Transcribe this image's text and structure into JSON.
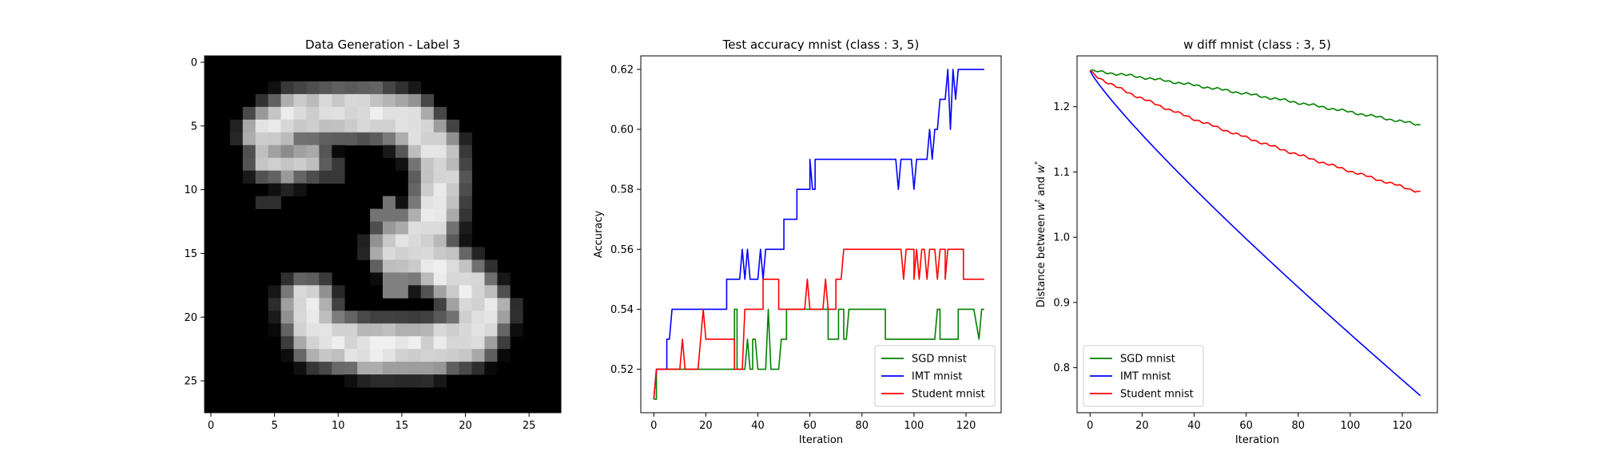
{
  "chart_data": [
    {
      "type": "heatmap",
      "title": "Data Generation - Label 3",
      "xlabel": "",
      "ylabel": "",
      "xlim": [
        -0.5,
        27.5
      ],
      "ylim": [
        27.5,
        -0.5
      ],
      "xticks": [
        0,
        5,
        10,
        15,
        20,
        25
      ],
      "yticks": [
        0,
        5,
        10,
        15,
        20,
        25
      ],
      "colormap": "gray",
      "grid": false,
      "strokes": [
        {
          "cx": 4,
          "cy": 6,
          "r": 0.5,
          "v": 0.5
        },
        {
          "cx": 5.5,
          "cy": 7.2,
          "r": 0.6,
          "v": 0.55
        },
        {
          "cx": 4.6,
          "cy": 9.1,
          "r": 0.4,
          "v": 0.32
        },
        {
          "cx": 4.8,
          "cy": 11,
          "r": 0.35,
          "v": 0.18
        },
        {
          "cx": 9.5,
          "cy": 8.5,
          "r": 0.35,
          "v": 0.22
        },
        {
          "cx": 8,
          "cy": 7.5,
          "r": 0.3,
          "v": 0.25
        },
        {
          "cx": 14,
          "cy": 12,
          "r": 0.5,
          "v": 0.45
        },
        {
          "cx": 14.5,
          "cy": 17.5,
          "r": 0.5,
          "v": 0.5
        },
        {
          "cx": 12,
          "cy": 23,
          "r": 0.5,
          "v": 0.35
        },
        {
          "cx": 16.5,
          "cy": 23,
          "r": 0.5,
          "v": 0.3
        },
        {
          "cx": 22.5,
          "cy": 19,
          "r": 0.4,
          "v": 0.25
        },
        {
          "cx": 7,
          "cy": 20,
          "r": 0.35,
          "v": 0.35
        }
      ],
      "stroke_paths": [
        {
          "points": [
            [
              4.5,
              5.5
            ],
            [
              6.5,
              4.3
            ],
            [
              9.5,
              4.0
            ],
            [
              12.5,
              3.9
            ],
            [
              15.5,
              4.6
            ],
            [
              17.5,
              6.6
            ],
            [
              18,
              9
            ],
            [
              17.6,
              12
            ],
            [
              16.5,
              13.8
            ],
            [
              14.6,
              14.6
            ]
          ],
          "width": 1.7,
          "v": 0.94
        },
        {
          "points": [
            [
              14.6,
              14.6
            ],
            [
              17.5,
              15.6
            ],
            [
              20,
              17.6
            ],
            [
              21.5,
              19.6
            ],
            [
              20.5,
              21.5
            ],
            [
              17,
              22.4
            ],
            [
              12.5,
              22.4
            ],
            [
              8.5,
              21.6
            ],
            [
              7.8,
              20.2
            ],
            [
              7.6,
              19
            ]
          ],
          "width": 1.8,
          "v": 0.95
        },
        {
          "points": [
            [
              4.2,
              7.5
            ],
            [
              6,
              8.2
            ],
            [
              8,
              7.6
            ]
          ],
          "width": 1.0,
          "v": 0.82
        }
      ]
    },
    {
      "type": "line",
      "title": "Test accuracy mnist (class : 3, 5)",
      "xlabel": "Iteration",
      "ylabel": "Accuracy",
      "xlim": [
        -5,
        133.5
      ],
      "ylim": [
        0.5055,
        0.6245
      ],
      "xticks": [
        0,
        20,
        40,
        60,
        80,
        100,
        120
      ],
      "yticks": [
        0.52,
        0.54,
        0.56,
        0.58,
        0.6,
        0.62
      ],
      "ytick_labels": [
        "0.52",
        "0.54",
        "0.56",
        "0.58",
        "0.60",
        "0.62"
      ],
      "legend": "lower-right",
      "grid": false,
      "series": [
        {
          "name": "SGD mnist",
          "color": "#008000",
          "segments": [
            [
              0,
              0.51
            ],
            [
              1,
              0.51
            ],
            [
              1,
              0.52
            ],
            [
              31,
              0.52
            ],
            [
              31,
              0.54
            ],
            [
              32,
              0.54
            ],
            [
              32,
              0.52
            ],
            [
              35,
              0.52
            ],
            [
              36,
              0.53
            ],
            [
              37,
              0.52
            ],
            [
              38,
              0.52
            ],
            [
              38,
              0.53
            ],
            [
              39,
              0.53
            ],
            [
              40,
              0.52
            ],
            [
              43,
              0.52
            ],
            [
              44,
              0.54
            ],
            [
              45,
              0.52
            ],
            [
              48,
              0.52
            ],
            [
              49,
              0.53
            ],
            [
              51,
              0.53
            ],
            [
              51,
              0.54
            ],
            [
              67,
              0.54
            ],
            [
              67,
              0.53
            ],
            [
              71,
              0.53
            ],
            [
              71,
              0.54
            ],
            [
              73,
              0.54
            ],
            [
              73,
              0.53
            ],
            [
              74,
              0.53
            ],
            [
              75,
              0.54
            ],
            [
              89,
              0.54
            ],
            [
              89,
              0.53
            ],
            [
              108,
              0.53
            ],
            [
              109,
              0.54
            ],
            [
              110,
              0.54
            ],
            [
              110,
              0.53
            ],
            [
              117,
              0.53
            ],
            [
              117,
              0.54
            ],
            [
              123,
              0.54
            ],
            [
              125,
              0.53
            ],
            [
              126,
              0.54
            ],
            [
              127,
              0.54
            ]
          ]
        },
        {
          "name": "IMT mnist",
          "color": "#0000ff",
          "segments": [
            [
              0,
              0.51
            ],
            [
              1,
              0.52
            ],
            [
              5,
              0.52
            ],
            [
              5,
              0.53
            ],
            [
              6,
              0.53
            ],
            [
              7,
              0.54
            ],
            [
              28,
              0.54
            ],
            [
              28,
              0.55
            ],
            [
              33,
              0.55
            ],
            [
              34,
              0.56
            ],
            [
              35,
              0.55
            ],
            [
              36,
              0.56
            ],
            [
              37,
              0.55
            ],
            [
              40,
              0.55
            ],
            [
              41,
              0.56
            ],
            [
              42,
              0.55
            ],
            [
              43,
              0.56
            ],
            [
              50,
              0.56
            ],
            [
              50,
              0.57
            ],
            [
              55,
              0.57
            ],
            [
              55,
              0.58
            ],
            [
              60,
              0.58
            ],
            [
              60,
              0.59
            ],
            [
              61,
              0.58
            ],
            [
              62,
              0.58
            ],
            [
              62,
              0.59
            ],
            [
              93,
              0.59
            ],
            [
              94,
              0.58
            ],
            [
              95,
              0.59
            ],
            [
              99,
              0.59
            ],
            [
              100,
              0.58
            ],
            [
              101,
              0.59
            ],
            [
              105,
              0.59
            ],
            [
              106,
              0.6
            ],
            [
              107,
              0.59
            ],
            [
              108,
              0.6
            ],
            [
              109,
              0.6
            ],
            [
              110,
              0.61
            ],
            [
              112,
              0.61
            ],
            [
              113,
              0.62
            ],
            [
              114,
              0.6
            ],
            [
              115,
              0.62
            ],
            [
              116,
              0.61
            ],
            [
              117,
              0.62
            ],
            [
              127,
              0.62
            ]
          ]
        },
        {
          "name": "Student mnist",
          "color": "#ff0000",
          "segments": [
            [
              0,
              0.51
            ],
            [
              1,
              0.52
            ],
            [
              10,
              0.52
            ],
            [
              11,
              0.53
            ],
            [
              12,
              0.52
            ],
            [
              17,
              0.52
            ],
            [
              18,
              0.53
            ],
            [
              19,
              0.54
            ],
            [
              20,
              0.53
            ],
            [
              31,
              0.53
            ],
            [
              31,
              0.52
            ],
            [
              34,
              0.52
            ],
            [
              35,
              0.54
            ],
            [
              42,
              0.54
            ],
            [
              42,
              0.55
            ],
            [
              48,
              0.55
            ],
            [
              48,
              0.54
            ],
            [
              58,
              0.54
            ],
            [
              59,
              0.55
            ],
            [
              60,
              0.54
            ],
            [
              65,
              0.54
            ],
            [
              66,
              0.55
            ],
            [
              67,
              0.54
            ],
            [
              70,
              0.54
            ],
            [
              70,
              0.55
            ],
            [
              72,
              0.55
            ],
            [
              73,
              0.56
            ],
            [
              95,
              0.56
            ],
            [
              96,
              0.55
            ],
            [
              97,
              0.56
            ],
            [
              100,
              0.56
            ],
            [
              100,
              0.55
            ],
            [
              101,
              0.56
            ],
            [
              102,
              0.55
            ],
            [
              103,
              0.56
            ],
            [
              104,
              0.56
            ],
            [
              105,
              0.55
            ],
            [
              106,
              0.56
            ],
            [
              108,
              0.56
            ],
            [
              109,
              0.55
            ],
            [
              110,
              0.56
            ],
            [
              112,
              0.56
            ],
            [
              112,
              0.55
            ],
            [
              113,
              0.56
            ],
            [
              119,
              0.56
            ],
            [
              119,
              0.55
            ],
            [
              127,
              0.55
            ]
          ]
        }
      ]
    },
    {
      "type": "line",
      "title": "w diff mnist (class : 3, 5)",
      "xlabel": "Iteration",
      "ylabel_parts": [
        "Distance between ",
        "w",
        "t",
        " and ",
        "w",
        "*"
      ],
      "xlim": [
        -5,
        133.5
      ],
      "ylim": [
        0.731,
        1.278
      ],
      "xticks": [
        0,
        20,
        40,
        60,
        80,
        100,
        120
      ],
      "yticks": [
        0.8,
        0.9,
        1.0,
        1.1,
        1.2
      ],
      "ytick_labels": [
        "0.8",
        "0.9",
        "1.0",
        "1.1",
        "1.2"
      ],
      "legend": "lower-left",
      "grid": false,
      "series": [
        {
          "name": "SGD mnist",
          "color": "#008000",
          "curve": {
            "start": 1.255,
            "end": 1.172,
            "power": 1.15,
            "jitter": 0.0025
          }
        },
        {
          "name": "IMT mnist",
          "color": "#0000ff",
          "curve": {
            "start": 1.255,
            "end": 0.757,
            "power": 0.88,
            "jitter": 0
          }
        },
        {
          "name": "Student mnist",
          "color": "#ff0000",
          "curve": {
            "start": 1.255,
            "end": 1.069,
            "power": 0.8,
            "jitter": 0.0025
          }
        }
      ],
      "x_max": 127
    }
  ]
}
